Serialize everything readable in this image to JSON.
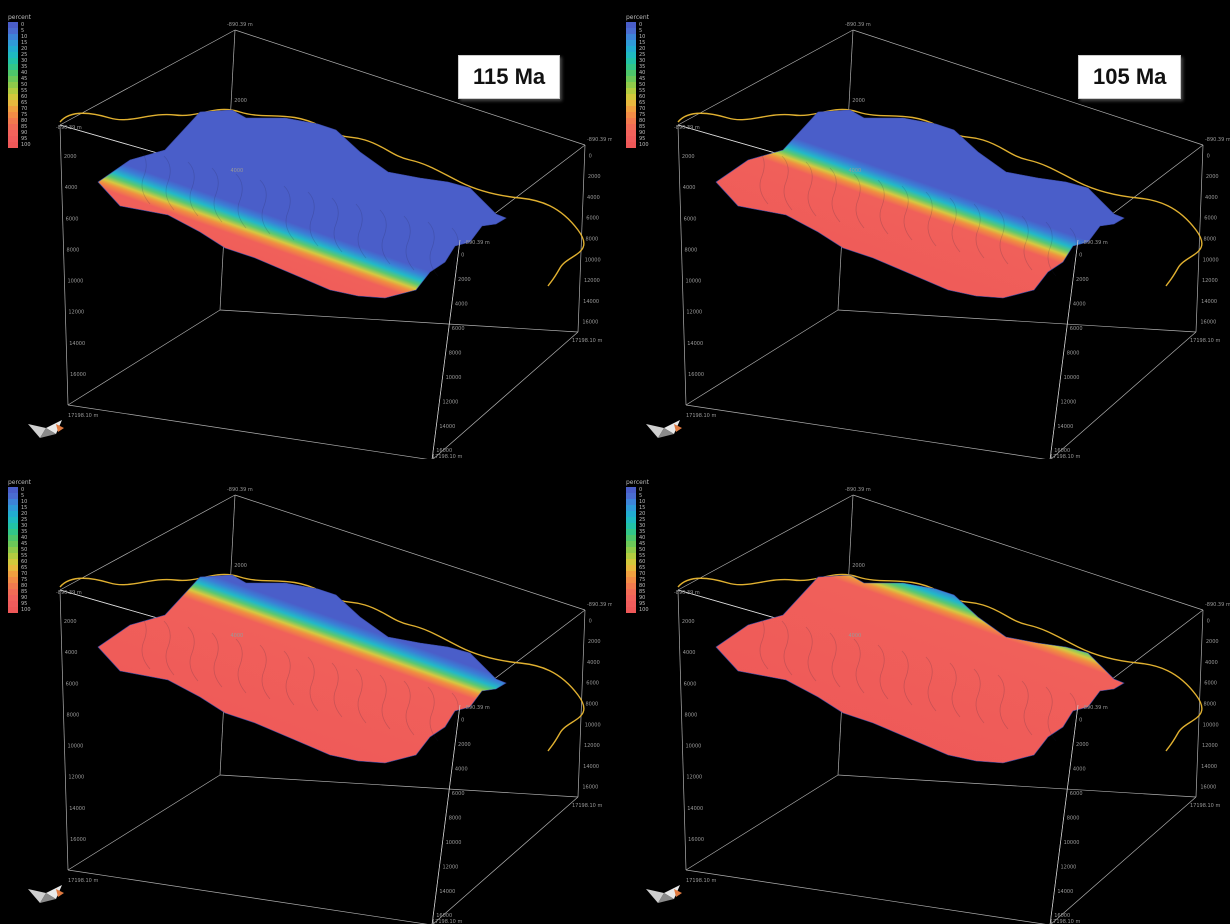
{
  "panels": [
    {
      "age_label": "115 Ma",
      "front": 0.34,
      "pt": 0.08
    },
    {
      "age_label": "105 Ma",
      "front": 0.52,
      "pt": 0.08
    },
    {
      "age_label": "",
      "front": 0.68,
      "pt": 0.08
    },
    {
      "age_label": "",
      "front": 0.8,
      "pt": 0.08
    }
  ],
  "legend": {
    "title": "percent",
    "entries": [
      {
        "value": "0",
        "color": "#4a5ec9"
      },
      {
        "value": "5",
        "color": "#4a6cd0"
      },
      {
        "value": "10",
        "color": "#3d84d8"
      },
      {
        "value": "15",
        "color": "#2f9ad8"
      },
      {
        "value": "20",
        "color": "#22acd0"
      },
      {
        "value": "25",
        "color": "#1fbac0"
      },
      {
        "value": "30",
        "color": "#22c2a6"
      },
      {
        "value": "35",
        "color": "#32c688"
      },
      {
        "value": "40",
        "color": "#4ec66a"
      },
      {
        "value": "45",
        "color": "#6cc858"
      },
      {
        "value": "50",
        "color": "#8fca4a"
      },
      {
        "value": "55",
        "color": "#b2cc40"
      },
      {
        "value": "60",
        "color": "#d2c83c"
      },
      {
        "value": "65",
        "color": "#e8b83e"
      },
      {
        "value": "70",
        "color": "#f0a040"
      },
      {
        "value": "75",
        "color": "#f28c46"
      },
      {
        "value": "80",
        "color": "#f27a4e"
      },
      {
        "value": "85",
        "color": "#f26c56"
      },
      {
        "value": "90",
        "color": "#f2625c"
      },
      {
        "value": "95",
        "color": "#f05c5c"
      },
      {
        "value": "100",
        "color": "#ee5858"
      }
    ]
  },
  "axes": {
    "top_corner": "-890.39 m",
    "left_corner": "-890.39 m",
    "right_corner": "-890.39 m",
    "bottom_left": "17198.10 m",
    "bottom_right": "17198.10 m",
    "bottom_center": "17198.10 m",
    "center_corner": "-890.39 m",
    "left_ticks": [
      "2000",
      "4000",
      "6000",
      "8000",
      "10000",
      "12000",
      "14000",
      "16000"
    ],
    "right_ticks": [
      "0",
      "2000",
      "4000",
      "6000",
      "8000",
      "10000",
      "12000",
      "14000",
      "16000"
    ],
    "vertical_ticks": [
      "0",
      "2000",
      "4000",
      "6000",
      "8000",
      "10000",
      "12000",
      "14000",
      "16000"
    ],
    "top_ticks": [
      "2000",
      "4000"
    ]
  },
  "colors": {
    "cold": "#4a5ec9",
    "hot": "#ee5858",
    "coast": "#e0b030",
    "grid": "#cfcfcf"
  }
}
